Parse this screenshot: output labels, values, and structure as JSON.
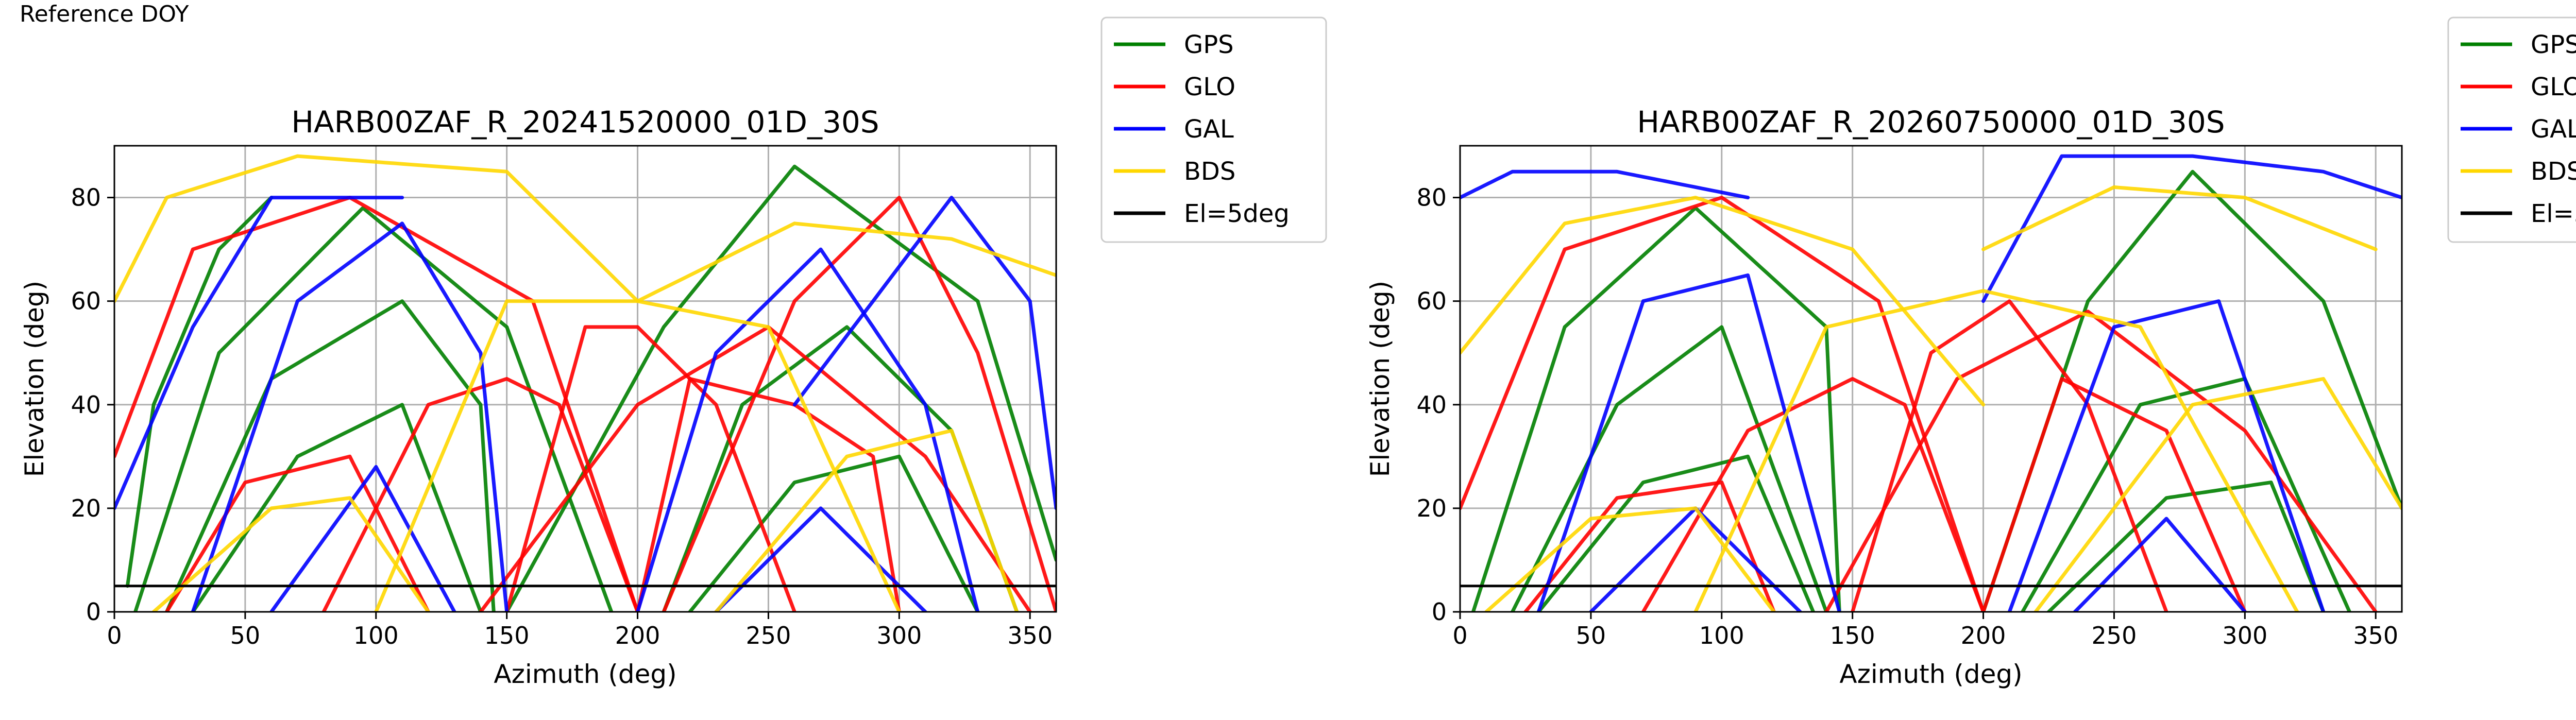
{
  "page": {
    "corner_label": "Reference DOY"
  },
  "legend": [
    {
      "name": "GPS",
      "color": "#008000"
    },
    {
      "name": "GLO",
      "color": "#ff0000"
    },
    {
      "name": "GAL",
      "color": "#0000ff"
    },
    {
      "name": "BDS",
      "color": "#ffd700"
    },
    {
      "name": "El=5deg",
      "color": "#000000"
    }
  ],
  "chart_data": [
    {
      "type": "scatter",
      "title": "HARB00ZAF_R_20241520000_01D_30S",
      "xlabel": "Azimuth (deg)",
      "ylabel": "Elevation (deg)",
      "xlim": [
        0,
        360
      ],
      "ylim": [
        0,
        90
      ],
      "xticks": [
        0,
        50,
        100,
        150,
        200,
        250,
        300,
        350
      ],
      "yticks": [
        0,
        20,
        40,
        60,
        80
      ],
      "grid": true,
      "legend_position": "outside-top-right",
      "reference_line": {
        "name": "El=5deg",
        "y": 5
      },
      "series": [
        {
          "name": "GPS",
          "color": "#008000",
          "arcs": [
            {
              "az": [
                8,
                40,
                95,
                150,
                190
              ],
              "el": [
                0,
                50,
                78,
                55,
                0
              ]
            },
            {
              "az": [
                20,
                60,
                110,
                140,
                145
              ],
              "el": [
                0,
                45,
                60,
                40,
                0
              ]
            },
            {
              "az": [
                150,
                210,
                260,
                330,
                360
              ],
              "el": [
                0,
                55,
                86,
                60,
                10
              ]
            },
            {
              "az": [
                210,
                240,
                280,
                320,
                345
              ],
              "el": [
                0,
                40,
                55,
                35,
                0
              ]
            },
            {
              "az": [
                30,
                70,
                110,
                140
              ],
              "el": [
                0,
                30,
                40,
                0
              ]
            },
            {
              "az": [
                220,
                260,
                300,
                330
              ],
              "el": [
                0,
                25,
                30,
                0
              ]
            },
            {
              "az": [
                5,
                15,
                40,
                60
              ],
              "el": [
                5,
                40,
                70,
                80
              ]
            }
          ]
        },
        {
          "name": "GLO",
          "color": "#ff0000",
          "arcs": [
            {
              "az": [
                0,
                30,
                90,
                160,
                200
              ],
              "el": [
                30,
                70,
                80,
                60,
                0
              ]
            },
            {
              "az": [
                150,
                180,
                200,
                230,
                260
              ],
              "el": [
                0,
                55,
                55,
                40,
                0
              ]
            },
            {
              "az": [
                140,
                200,
                250,
                310,
                350
              ],
              "el": [
                0,
                40,
                55,
                30,
                0
              ]
            },
            {
              "az": [
                80,
                120,
                150,
                170,
                200
              ],
              "el": [
                0,
                40,
                45,
                40,
                0
              ]
            },
            {
              "az": [
                200,
                220,
                260,
                290,
                300
              ],
              "el": [
                0,
                45,
                40,
                30,
                0
              ]
            },
            {
              "az": [
                210,
                260,
                300,
                330,
                360
              ],
              "el": [
                0,
                60,
                80,
                50,
                0
              ]
            },
            {
              "az": [
                20,
                50,
                90,
                120
              ],
              "el": [
                0,
                25,
                30,
                0
              ]
            }
          ]
        },
        {
          "name": "GAL",
          "color": "#0000ff",
          "arcs": [
            {
              "az": [
                30,
                70,
                110,
                140,
                150
              ],
              "el": [
                0,
                60,
                75,
                50,
                0
              ]
            },
            {
              "az": [
                200,
                230,
                270,
                310,
                330
              ],
              "el": [
                0,
                50,
                70,
                40,
                0
              ]
            },
            {
              "az": [
                0,
                30,
                60,
                110
              ],
              "el": [
                20,
                55,
                80,
                80
              ]
            },
            {
              "az": [
                260,
                320,
                350,
                360
              ],
              "el": [
                40,
                80,
                60,
                20
              ]
            },
            {
              "az": [
                60,
                100,
                130
              ],
              "el": [
                0,
                28,
                0
              ]
            },
            {
              "az": [
                230,
                270,
                310
              ],
              "el": [
                0,
                20,
                0
              ]
            }
          ]
        },
        {
          "name": "BDS",
          "color": "#ffd700",
          "arcs": [
            {
              "az": [
                0,
                20,
                70,
                150,
                200
              ],
              "el": [
                60,
                80,
                88,
                85,
                60
              ]
            },
            {
              "az": [
                100,
                150,
                200,
                250,
                300
              ],
              "el": [
                0,
                60,
                60,
                55,
                0
              ]
            },
            {
              "az": [
                230,
                280,
                320,
                345
              ],
              "el": [
                0,
                30,
                35,
                0
              ]
            },
            {
              "az": [
                15,
                60,
                90,
                120
              ],
              "el": [
                0,
                20,
                22,
                0
              ]
            },
            {
              "az": [
                200,
                260,
                320,
                360
              ],
              "el": [
                60,
                75,
                72,
                65
              ]
            }
          ]
        }
      ]
    },
    {
      "type": "scatter",
      "title": "HARB00ZAF_R_20260750000_01D_30S",
      "xlabel": "Azimuth (deg)",
      "ylabel": "Elevation (deg)",
      "xlim": [
        0,
        360
      ],
      "ylim": [
        0,
        90
      ],
      "xticks": [
        0,
        50,
        100,
        150,
        200,
        250,
        300,
        350
      ],
      "yticks": [
        0,
        20,
        40,
        60,
        80
      ],
      "grid": true,
      "legend_position": "outside-top-right",
      "reference_line": {
        "name": "El=5deg",
        "y": 5
      },
      "series": [
        {
          "name": "GPS",
          "color": "#008000",
          "arcs": [
            {
              "az": [
                5,
                40,
                90,
                140,
                145
              ],
              "el": [
                0,
                55,
                78,
                55,
                0
              ]
            },
            {
              "az": [
                20,
                60,
                100,
                140
              ],
              "el": [
                0,
                40,
                55,
                0
              ]
            },
            {
              "az": [
                200,
                240,
                280,
                330,
                360
              ],
              "el": [
                0,
                60,
                85,
                60,
                20
              ]
            },
            {
              "az": [
                215,
                260,
                300,
                340
              ],
              "el": [
                0,
                40,
                45,
                0
              ]
            },
            {
              "az": [
                30,
                70,
                110,
                135
              ],
              "el": [
                0,
                25,
                30,
                0
              ]
            },
            {
              "az": [
                225,
                270,
                310,
                330
              ],
              "el": [
                0,
                22,
                25,
                0
              ]
            }
          ]
        },
        {
          "name": "GLO",
          "color": "#ff0000",
          "arcs": [
            {
              "az": [
                0,
                40,
                100,
                160,
                200
              ],
              "el": [
                20,
                70,
                80,
                60,
                0
              ]
            },
            {
              "az": [
                150,
                180,
                210,
                240,
                270
              ],
              "el": [
                0,
                50,
                60,
                40,
                0
              ]
            },
            {
              "az": [
                140,
                190,
                240,
                300,
                350
              ],
              "el": [
                0,
                45,
                58,
                35,
                0
              ]
            },
            {
              "az": [
                70,
                110,
                150,
                170,
                200
              ],
              "el": [
                0,
                35,
                45,
                40,
                0
              ]
            },
            {
              "az": [
                200,
                230,
                270,
                300
              ],
              "el": [
                0,
                45,
                35,
                0
              ]
            },
            {
              "az": [
                25,
                60,
                100,
                120
              ],
              "el": [
                0,
                22,
                25,
                0
              ]
            }
          ]
        },
        {
          "name": "GAL",
          "color": "#0000ff",
          "arcs": [
            {
              "az": [
                0,
                20,
                60,
                110
              ],
              "el": [
                80,
                85,
                85,
                80
              ]
            },
            {
              "az": [
                200,
                230,
                280,
                330,
                360
              ],
              "el": [
                60,
                88,
                88,
                85,
                80
              ]
            },
            {
              "az": [
                30,
                70,
                110,
                145
              ],
              "el": [
                0,
                60,
                65,
                0
              ]
            },
            {
              "az": [
                210,
                250,
                290,
                330
              ],
              "el": [
                0,
                55,
                60,
                0
              ]
            },
            {
              "az": [
                50,
                90,
                130
              ],
              "el": [
                0,
                20,
                0
              ]
            },
            {
              "az": [
                235,
                270,
                300
              ],
              "el": [
                0,
                18,
                0
              ]
            }
          ]
        },
        {
          "name": "BDS",
          "color": "#ffd700",
          "arcs": [
            {
              "az": [
                0,
                40,
                90,
                150,
                200
              ],
              "el": [
                50,
                75,
                80,
                70,
                40
              ]
            },
            {
              "az": [
                90,
                140,
                200,
                260,
                320
              ],
              "el": [
                0,
                55,
                62,
                55,
                0
              ]
            },
            {
              "az": [
                220,
                280,
                330,
                360
              ],
              "el": [
                0,
                40,
                45,
                20
              ]
            },
            {
              "az": [
                10,
                50,
                90,
                120
              ],
              "el": [
                0,
                18,
                20,
                0
              ]
            },
            {
              "az": [
                200,
                250,
                300,
                350
              ],
              "el": [
                70,
                82,
                80,
                70
              ]
            }
          ]
        }
      ]
    }
  ]
}
